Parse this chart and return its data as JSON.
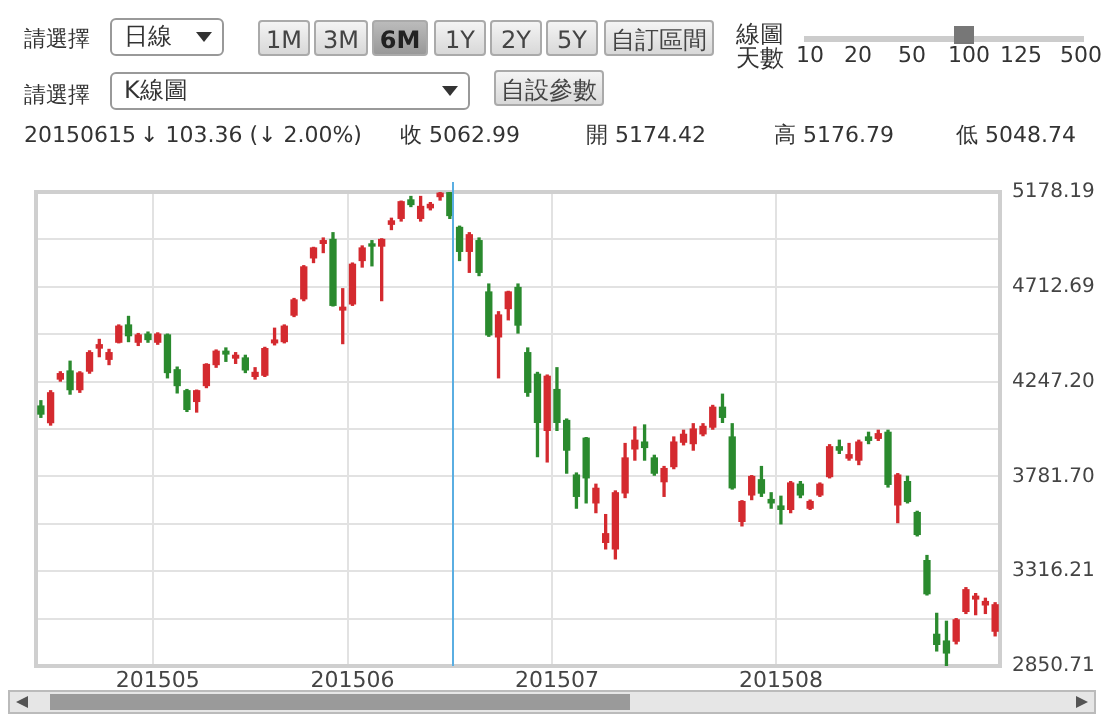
{
  "chart_data": {
    "type": "candlestick",
    "categories": [
      null,
      null,
      null,
      null,
      null,
      null,
      null,
      null,
      null,
      null,
      null,
      null,
      "201505",
      null,
      null,
      null,
      null,
      null,
      null,
      null,
      null,
      null,
      null,
      null,
      null,
      null,
      null,
      null,
      null,
      null,
      null,
      null,
      "201506",
      null,
      null,
      null,
      null,
      null,
      null,
      null,
      null,
      null,
      null,
      null,
      null,
      null,
      null,
      null,
      null,
      null,
      null,
      null,
      null,
      "201507",
      null,
      null,
      null,
      null,
      null,
      null,
      null,
      null,
      null,
      null,
      null,
      null,
      null,
      null,
      null,
      null,
      null,
      null,
      null,
      null,
      null,
      null,
      "201508",
      null,
      null,
      null,
      null,
      null,
      null,
      null,
      null,
      null,
      null,
      null,
      null,
      null,
      null,
      null,
      null,
      null,
      null,
      null,
      null,
      null,
      null
    ],
    "ohlc": [
      [
        4127,
        4153,
        4072,
        4088
      ],
      [
        4046,
        4202,
        4034,
        4192
      ],
      [
        4260,
        4295,
        4250,
        4286
      ],
      [
        4299,
        4347,
        4186,
        4208
      ],
      [
        4208,
        4295,
        4195,
        4289
      ],
      [
        4299,
        4398,
        4289,
        4389
      ],
      [
        4412,
        4454,
        4370,
        4428
      ],
      [
        4357,
        4405,
        4331,
        4389
      ],
      [
        4441,
        4525,
        4438,
        4519
      ],
      [
        4525,
        4567,
        4444,
        4473
      ],
      [
        4441,
        4483,
        4425,
        4476
      ],
      [
        4480,
        4490,
        4441,
        4454
      ],
      [
        4441,
        4486,
        4431,
        4480
      ],
      [
        4476,
        4480,
        4266,
        4292
      ],
      [
        4305,
        4318,
        4192,
        4228
      ],
      [
        4202,
        4208,
        4101,
        4111
      ],
      [
        4150,
        4205,
        4098,
        4202
      ],
      [
        4228,
        4334,
        4218,
        4331
      ],
      [
        4331,
        4402,
        4318,
        4396
      ],
      [
        4396,
        4412,
        4347,
        4383
      ],
      [
        4363,
        4389,
        4337,
        4376
      ],
      [
        4363,
        4376,
        4292,
        4305
      ],
      [
        4273,
        4315,
        4260,
        4292
      ],
      [
        4279,
        4415,
        4273,
        4409
      ],
      [
        4438,
        4509,
        4428,
        4451
      ],
      [
        4444,
        4525,
        4438,
        4519
      ],
      [
        4574,
        4655,
        4567,
        4648
      ],
      [
        4654,
        4816,
        4645,
        4810
      ],
      [
        4855,
        4906,
        4832,
        4903
      ],
      [
        4926,
        4952,
        4881,
        4939
      ],
      [
        4945,
        4978,
        4619,
        4622
      ],
      [
        4599,
        4703,
        4434,
        4612
      ],
      [
        4629,
        4829,
        4622,
        4823
      ],
      [
        4842,
        4913,
        4810,
        4903
      ],
      [
        4923,
        4939,
        4816,
        4913
      ],
      [
        4913,
        4948,
        4645,
        4945
      ],
      [
        5020,
        5049,
        4994,
        5036
      ],
      [
        5049,
        5133,
        5036,
        5130
      ],
      [
        5139,
        5156,
        5107,
        5117
      ],
      [
        5049,
        5156,
        5036,
        5107
      ],
      [
        5101,
        5126,
        5091,
        5117
      ],
      [
        5156,
        5178,
        5139,
        5172
      ],
      [
        5174.42,
        5176.79,
        5048.74,
        5062.99
      ],
      [
        5004,
        5010,
        4842,
        4887
      ],
      [
        4887,
        4978,
        4784,
        4968
      ],
      [
        4939,
        4952,
        4768,
        4784
      ],
      [
        4687,
        4726,
        4470,
        4477
      ],
      [
        4467,
        4590,
        4266,
        4574
      ],
      [
        4606,
        4690,
        4551,
        4687
      ],
      [
        4709,
        4726,
        4486,
        4525
      ],
      [
        4389,
        4412,
        4176,
        4195
      ],
      [
        4283,
        4292,
        3879,
        4047
      ],
      [
        4008,
        4279,
        3853,
        4273
      ],
      [
        4208,
        4315,
        4008,
        4047
      ],
      [
        4056,
        4063,
        3798,
        3911
      ],
      [
        3788,
        3798,
        3626,
        3684
      ],
      [
        3969,
        3972,
        3652,
        3775
      ],
      [
        3652,
        3743,
        3604,
        3723
      ],
      [
        3458,
        3594,
        3426,
        3500
      ],
      [
        3426,
        3710,
        3377,
        3701
      ],
      [
        3701,
        3943,
        3678,
        3872
      ],
      [
        3917,
        4024,
        3862,
        3959
      ],
      [
        3950,
        4034,
        3862,
        3924
      ],
      [
        3872,
        3885,
        3788,
        3798
      ],
      [
        3756,
        3830,
        3684,
        3820
      ],
      [
        3830,
        3975,
        3820,
        3950
      ],
      [
        3950,
        4008,
        3937,
        3988
      ],
      [
        3943,
        4040,
        3911,
        4014
      ],
      [
        3991,
        4040,
        3982,
        4027
      ],
      [
        4024,
        4130,
        4014,
        4121
      ],
      [
        4121,
        4185,
        4047,
        4072
      ],
      [
        3975,
        4040,
        3720,
        3726
      ],
      [
        3561,
        3662,
        3539,
        3658
      ],
      [
        3691,
        3785,
        3668,
        3781
      ],
      [
        3765,
        3830,
        3684,
        3700
      ],
      [
        3668,
        3701,
        3626,
        3652
      ],
      [
        3636,
        3684,
        3549,
        3620
      ],
      [
        3620,
        3756,
        3604,
        3749
      ],
      [
        3743,
        3756,
        3678,
        3691
      ],
      [
        3626,
        3665,
        3620,
        3658
      ],
      [
        3691,
        3749,
        3684,
        3743
      ],
      [
        3781,
        3937,
        3775,
        3927
      ],
      [
        3927,
        3959,
        3895,
        3911
      ],
      [
        3872,
        3943,
        3862,
        3888
      ],
      [
        3862,
        3959,
        3840,
        3950
      ],
      [
        3975,
        3998,
        3943,
        3959
      ],
      [
        3969,
        4008,
        3959,
        3991
      ],
      [
        3998,
        4008,
        3730,
        3743
      ],
      [
        3642,
        3795,
        3555,
        3788
      ],
      [
        3756,
        3782,
        3652,
        3659
      ],
      [
        3604,
        3610,
        3490,
        3497
      ],
      [
        3368,
        3393,
        3200,
        3206
      ],
      [
        3006,
        3109,
        2925,
        2957
      ],
      [
        2973,
        3070,
        2851,
        2915
      ],
      [
        2973,
        3083,
        2960,
        3077
      ],
      [
        3119,
        3235,
        3109,
        3225
      ],
      [
        3180,
        3206,
        3103,
        3193
      ],
      [
        3151,
        3183,
        3109,
        3167
      ],
      [
        3022,
        3161,
        2999,
        3151
      ]
    ],
    "colors": [
      "#2a8a2e",
      "#d42a2f",
      "#d42a2f",
      "#2a8a2e",
      "#d42a2f",
      "#d42a2f",
      "#d42a2f",
      "#d42a2f",
      "#d42a2f",
      "#2a8a2e",
      "#d42a2f",
      "#2a8a2e",
      "#d42a2f",
      "#2a8a2e",
      "#2a8a2e",
      "#2a8a2e",
      "#d42a2f",
      "#d42a2f",
      "#d42a2f",
      "#2a8a2e",
      "#d42a2f",
      "#2a8a2e",
      "#d42a2f",
      "#d42a2f",
      "#d42a2f",
      "#d42a2f",
      "#d42a2f",
      "#d42a2f",
      "#d42a2f",
      "#d42a2f",
      "#2a8a2e",
      "#d42a2f",
      "#d42a2f",
      "#d42a2f",
      "#2a8a2e",
      "#d42a2f",
      "#d42a2f",
      "#d42a2f",
      "#2a8a2e",
      "#d42a2f",
      "#d42a2f",
      "#d42a2f",
      "#2a8a2e",
      "#2a8a2e",
      "#d42a2f",
      "#2a8a2e",
      "#2a8a2e",
      "#d42a2f",
      "#d42a2f",
      "#2a8a2e",
      "#2a8a2e",
      "#2a8a2e",
      "#d42a2f",
      "#2a8a2e",
      "#2a8a2e",
      "#2a8a2e",
      "#2a8a2e",
      "#d42a2f",
      "#d42a2f",
      "#d42a2f",
      "#d42a2f",
      "#d42a2f",
      "#2a8a2e",
      "#2a8a2e",
      "#d42a2f",
      "#d42a2f",
      "#d42a2f",
      "#d42a2f",
      "#d42a2f",
      "#d42a2f",
      "#2a8a2e",
      "#2a8a2e",
      "#d42a2f",
      "#d42a2f",
      "#2a8a2e",
      "#2a8a2e",
      "#2a8a2e",
      "#d42a2f",
      "#2a8a2e",
      "#d42a2f",
      "#d42a2f",
      "#d42a2f",
      "#2a8a2e",
      "#d42a2f",
      "#d42a2f",
      "#2a8a2e",
      "#d42a2f",
      "#2a8a2e",
      "#d42a2f",
      "#2a8a2e",
      "#2a8a2e",
      "#2a8a2e",
      "#2a8a2e",
      "#2a8a2e",
      "#d42a2f",
      "#d42a2f",
      "#d42a2f",
      "#d42a2f",
      "#d42a2f"
    ],
    "ylim": [
      2850.71,
      5178.19
    ],
    "yticks": [
      2850.71,
      {
        "value": 3083.46,
        "label": null
      },
      3316.21,
      {
        "value": 3548.955,
        "label": null
      },
      {
        "value": 3781.7,
        "label": "3781.70"
      },
      {
        "value": 4014.45,
        "label": null
      },
      {
        "value": 4247.2,
        "label": "4247.20"
      },
      {
        "value": 4479.945,
        "label": null
      },
      4712.69,
      {
        "value": 4945.44,
        "label": null
      },
      5178.19
    ],
    "grid": true,
    "legend": false,
    "annotations": [
      "請選擇",
      "日線",
      "1M",
      "3M",
      "6M",
      "1Y",
      "2Y",
      "5Y",
      "自訂區間",
      "線圖天數",
      "10",
      "20",
      "50",
      "100",
      "125",
      "500",
      "請選擇",
      "K線圖",
      "自設參數",
      "20150615",
      "↓ 103.36 (↓ 2.00%)",
      "收 5062.99",
      "開 5174.42",
      "高 5176.79",
      "低 5048.74"
    ]
  }
}
